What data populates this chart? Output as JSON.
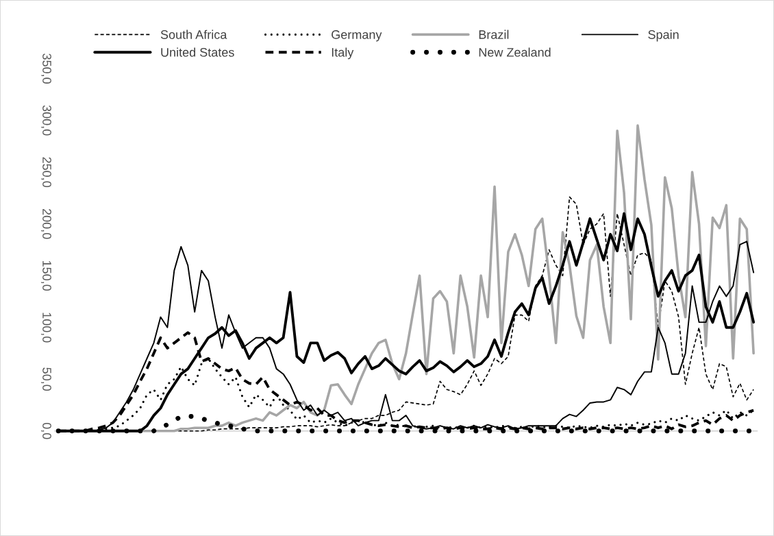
{
  "chart_data": {
    "type": "line",
    "categories": [
      null,
      null,
      null,
      null,
      null,
      null,
      null,
      null,
      null,
      null,
      null,
      null,
      null,
      null,
      null,
      null,
      null,
      null,
      null,
      null,
      null,
      null,
      null,
      null,
      null,
      null,
      null,
      null,
      null,
      null,
      null,
      null,
      null,
      null,
      null,
      null,
      null,
      null,
      null,
      null,
      null,
      null,
      null,
      null,
      null,
      null,
      null,
      null,
      null,
      null,
      null,
      null,
      null,
      null,
      null,
      null,
      null,
      null,
      null,
      null,
      null,
      null,
      null,
      null,
      null,
      null,
      null,
      null,
      null,
      null,
      null,
      null,
      null,
      null,
      null,
      null,
      null,
      null,
      null,
      null,
      null,
      null,
      null,
      null,
      null,
      null,
      null,
      null,
      null,
      null,
      null,
      null,
      null,
      null,
      null,
      null,
      null,
      null,
      null,
      null,
      null,
      null,
      null
    ],
    "ylim": [
      0,
      350
    ],
    "yticks": [
      {
        "value": 0,
        "label": "0,0"
      },
      {
        "value": 50,
        "label": "50,0"
      },
      {
        "value": 100,
        "label": "100,0"
      },
      {
        "value": 150,
        "label": "150,0"
      },
      {
        "value": 200,
        "label": "200,0"
      },
      {
        "value": 250,
        "label": "250,0"
      },
      {
        "value": 300,
        "label": "300,0"
      },
      {
        "value": 350,
        "label": "350,0"
      }
    ],
    "tick_labels": "y",
    "grid": false,
    "legend": "top",
    "series": [
      {
        "name": "South Africa",
        "color": "#000000",
        "line_style": "dashed",
        "values": [
          0,
          0,
          0,
          0,
          0,
          0,
          0,
          0,
          0,
          0,
          0,
          0,
          0,
          0,
          0,
          0,
          0,
          0,
          0,
          0,
          0,
          0,
          1,
          1,
          2,
          2,
          2,
          2,
          3,
          3,
          3,
          3,
          3,
          4,
          4,
          5,
          5,
          5,
          4,
          5,
          6,
          5,
          5,
          8,
          10,
          12,
          12,
          15,
          15,
          18,
          20,
          28,
          27,
          26,
          25,
          26,
          48,
          40,
          38,
          35,
          45,
          58,
          44,
          55,
          70,
          65,
          72,
          112,
          112,
          106,
          140,
          150,
          175,
          160,
          150,
          226,
          219,
          180,
          195,
          200,
          210,
          130,
          210,
          180,
          150,
          170,
          172,
          165,
          100,
          145,
          135,
          110,
          45,
          75,
          100,
          55,
          40,
          65,
          62,
          33,
          46,
          30,
          40
        ]
      },
      {
        "name": "Germany",
        "color": "#000000",
        "line_style": "dotted",
        "values": [
          0,
          0,
          0,
          0,
          0,
          0,
          0,
          2,
          3,
          5,
          10,
          15,
          22,
          35,
          40,
          30,
          45,
          50,
          62,
          50,
          44,
          65,
          70,
          60,
          52,
          45,
          52,
          33,
          23,
          35,
          30,
          23,
          35,
          25,
          20,
          11,
          15,
          8,
          10,
          8,
          12,
          8,
          5,
          8,
          10,
          8,
          6,
          5,
          8,
          5,
          6,
          4,
          5,
          3,
          4,
          5,
          3,
          4,
          3,
          4,
          3,
          5,
          3,
          4,
          3,
          5,
          4,
          3,
          4,
          3,
          5,
          4,
          3,
          5,
          4,
          3,
          5,
          4,
          3,
          5,
          4,
          6,
          5,
          7,
          5,
          8,
          6,
          7,
          10,
          8,
          12,
          10,
          15,
          12,
          10,
          14,
          18,
          15,
          20,
          12,
          18,
          15,
          20
        ]
      },
      {
        "name": "Brazil",
        "color": "#a6a6a6",
        "line_style": "solid",
        "values": [
          0,
          0,
          0,
          0,
          0,
          0,
          0,
          0,
          0,
          0,
          0,
          0,
          0,
          0,
          0,
          0,
          0,
          0,
          2,
          2,
          3,
          3,
          3,
          5,
          5,
          8,
          5,
          8,
          10,
          12,
          10,
          18,
          15,
          20,
          25,
          22,
          28,
          18,
          15,
          20,
          44,
          45,
          35,
          26,
          45,
          60,
          75,
          85,
          88,
          65,
          50,
          75,
          113,
          150,
          55,
          128,
          135,
          125,
          75,
          150,
          120,
          71,
          150,
          110,
          236,
          85,
          173,
          190,
          170,
          140,
          195,
          205,
          150,
          85,
          192,
          160,
          111,
          90,
          165,
          180,
          120,
          85,
          290,
          230,
          108,
          295,
          243,
          199,
          69,
          245,
          215,
          150,
          110,
          250,
          200,
          82,
          206,
          196,
          218,
          70,
          205,
          195,
          75
        ]
      },
      {
        "name": "Spain",
        "color": "#000000",
        "line_style": "solid",
        "values": [
          0,
          0,
          0,
          0,
          0,
          0,
          1,
          3,
          8,
          18,
          28,
          40,
          55,
          70,
          85,
          110,
          100,
          155,
          178,
          160,
          115,
          155,
          145,
          110,
          80,
          112,
          95,
          80,
          85,
          90,
          90,
          80,
          60,
          55,
          45,
          30,
          20,
          25,
          15,
          20,
          15,
          18,
          10,
          12,
          5,
          8,
          10,
          10,
          35,
          10,
          10,
          15,
          5,
          3,
          2,
          3,
          5,
          3,
          2,
          5,
          3,
          5,
          3,
          6,
          4,
          3,
          5,
          2,
          3,
          5,
          5,
          5,
          5,
          5,
          12,
          16,
          14,
          20,
          27,
          28,
          28,
          30,
          42,
          40,
          35,
          48,
          57,
          57,
          100,
          85,
          55,
          55,
          75,
          140,
          105,
          105,
          125,
          140,
          130,
          140,
          180,
          183,
          153
        ]
      },
      {
        "name": "United States",
        "color": "#000000",
        "line_style": "solid",
        "values": [
          0,
          0,
          0,
          0,
          0,
          0,
          0,
          0,
          0,
          0,
          0,
          0,
          0,
          5,
          15,
          22,
          35,
          45,
          55,
          60,
          70,
          80,
          90,
          94,
          100,
          92,
          97,
          85,
          70,
          80,
          85,
          90,
          85,
          90,
          134,
          72,
          66,
          85,
          85,
          68,
          73,
          76,
          70,
          56,
          65,
          72,
          60,
          63,
          70,
          64,
          58,
          55,
          62,
          68,
          58,
          61,
          67,
          63,
          57,
          62,
          68,
          62,
          65,
          72,
          88,
          72,
          95,
          115,
          123,
          112,
          138,
          148,
          123,
          140,
          160,
          183,
          160,
          182,
          205,
          185,
          165,
          190,
          174,
          210,
          175,
          205,
          190,
          159,
          130,
          145,
          155,
          135,
          150,
          155,
          170,
          120,
          105,
          125,
          100,
          100,
          115,
          133,
          105
        ]
      },
      {
        "name": "Italy",
        "color": "#000000",
        "line_style": "dashed",
        "values": [
          0,
          0,
          0,
          0,
          0,
          2,
          3,
          5,
          8,
          15,
          25,
          35,
          48,
          60,
          75,
          90,
          80,
          85,
          90,
          95,
          90,
          67,
          70,
          65,
          60,
          58,
          61,
          50,
          46,
          45,
          52,
          40,
          35,
          30,
          25,
          28,
          25,
          20,
          22,
          15,
          15,
          10,
          8,
          10,
          10,
          8,
          6,
          5,
          6,
          5,
          4,
          5,
          3,
          4,
          3,
          3,
          2,
          3,
          2,
          3,
          2,
          3,
          2,
          2,
          3,
          2,
          3,
          2,
          3,
          2,
          3,
          2,
          3,
          3,
          2,
          3,
          2,
          3,
          2,
          3,
          3,
          2,
          3,
          2,
          3,
          2,
          3,
          5,
          3,
          5,
          2,
          6,
          4,
          5,
          8,
          10,
          6,
          12,
          15,
          10,
          15,
          18,
          20
        ]
      },
      {
        "name": "New Zealand",
        "color": "#000000",
        "line_style": "dotted",
        "values": [
          0,
          0,
          0,
          0,
          0,
          0,
          0,
          0,
          0,
          0,
          0,
          0,
          0,
          0,
          0,
          4,
          6,
          10,
          14,
          14,
          14,
          12,
          10,
          8,
          6,
          5,
          4,
          2,
          1,
          0,
          0,
          0,
          0,
          0,
          0,
          0,
          0,
          0,
          0,
          0,
          0,
          0,
          0,
          0,
          0,
          0,
          0,
          0,
          0,
          0,
          0,
          0,
          0,
          0,
          0,
          0,
          0,
          0,
          0,
          0,
          0,
          0,
          0,
          0,
          0,
          0,
          0,
          0,
          0,
          0,
          0,
          0,
          0,
          0,
          0,
          0,
          0,
          0,
          0,
          0,
          0,
          0,
          0,
          0,
          0,
          0,
          0,
          0,
          0,
          0,
          0,
          0,
          0,
          0,
          0,
          0,
          0,
          0,
          0,
          0,
          0,
          0,
          0
        ]
      }
    ]
  }
}
